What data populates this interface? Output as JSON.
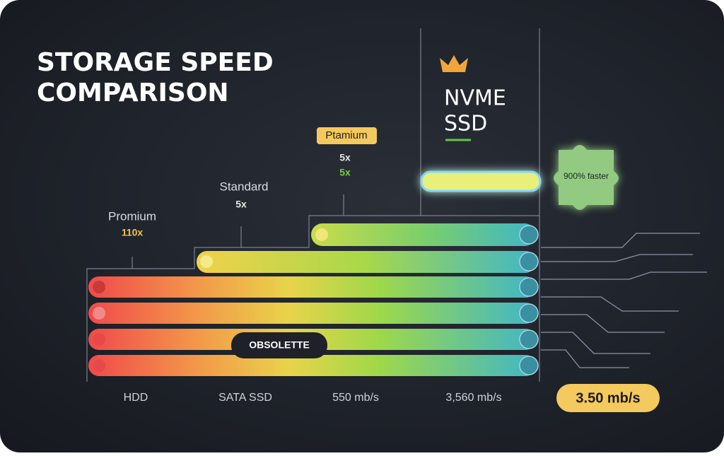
{
  "title": {
    "line1": "STORAGE SPEED",
    "line2": "COMPARISON"
  },
  "tiers": [
    {
      "label": "Promium",
      "multiplier": "110x"
    },
    {
      "label": "Standard",
      "multiplier": "5x"
    },
    {
      "label": "Ptamium",
      "multiplier": "5x",
      "multiplier_alt": "5x"
    }
  ],
  "nvme": {
    "line1": "NVME",
    "line2": "SSD"
  },
  "badge": "900% faster",
  "obsolete_tag": "OBSOLETTE",
  "axis_labels": [
    "HDD",
    "SATA SSD",
    "550 mb/s",
    "3,560 mb/s"
  ],
  "highlight": "3.50 mb/s"
}
